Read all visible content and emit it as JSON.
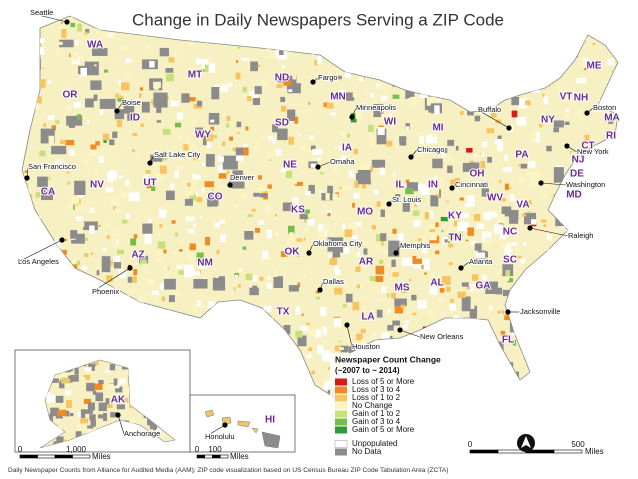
{
  "title": "Change in Daily Newspapers Serving a ZIP Code",
  "states": [
    "WA",
    "OR",
    "CA",
    "NV",
    "ID",
    "MT",
    "WY",
    "UT",
    "AZ",
    "CO",
    "NM",
    "ND",
    "SD",
    "NE",
    "KS",
    "OK",
    "TX",
    "MN",
    "IA",
    "MO",
    "AR",
    "LA",
    "WI",
    "IL",
    "MI",
    "IN",
    "OH",
    "KY",
    "TN",
    "MS",
    "AL",
    "GA",
    "FL",
    "SC",
    "NC",
    "VA",
    "WV",
    "PA",
    "NY",
    "VT",
    "NH",
    "ME",
    "MA",
    "RI",
    "CT",
    "NJ",
    "DE",
    "MD",
    "AK",
    "HI"
  ],
  "cities": [
    "Seattle",
    "Boise",
    "Salt Lake City",
    "San Francisco",
    "Los Angeles",
    "Phoenix",
    "Denver",
    "Fargo",
    "Minneapolis",
    "Omaha",
    "Oklahoma City",
    "Dallas",
    "Houston",
    "St. Louis",
    "Memphis",
    "New Orleans",
    "Chicago",
    "Cincinnati",
    "Atlanta",
    "Jacksonville",
    "Raleigh",
    "Washington",
    "New York",
    "Boston",
    "Buffalo",
    "Anchorage",
    "Honolulu"
  ],
  "legend": {
    "title": "Newspaper Count Change",
    "subtitle": "(~2007 to ~ 2014)",
    "items": [
      {
        "label": "Loss of 5 or More",
        "color": "#d7191c"
      },
      {
        "label": "Loss of 3 to 4",
        "color": "#f08a24"
      },
      {
        "label": "Loss of 1 to 2",
        "color": "#f7c45f"
      },
      {
        "label": "No Change",
        "color": "#fbf5c4"
      },
      {
        "label": "Gain of 1 to 2",
        "color": "#c6e07a"
      },
      {
        "label": "Gain of 3 to 4",
        "color": "#76bd4a"
      },
      {
        "label": "Gain of 5 or More",
        "color": "#2e9a3a"
      },
      {
        "label": "Unpopulated",
        "color": "#ffffff"
      },
      {
        "label": "No Data",
        "color": "#8c8c8c"
      }
    ]
  },
  "scale_bars": {
    "alaska": [
      "0",
      "1,000",
      "Miles"
    ],
    "hawaii": [
      "0",
      "100",
      "Miles"
    ],
    "main": [
      "0",
      "500",
      "Miles"
    ]
  },
  "caption": "Daily Newspaper Counts from Alliance for Audited Media (AAM); ZIP code visualization based on US Census Bureau ZIP Code Tabulation Area (ZCTA)"
}
